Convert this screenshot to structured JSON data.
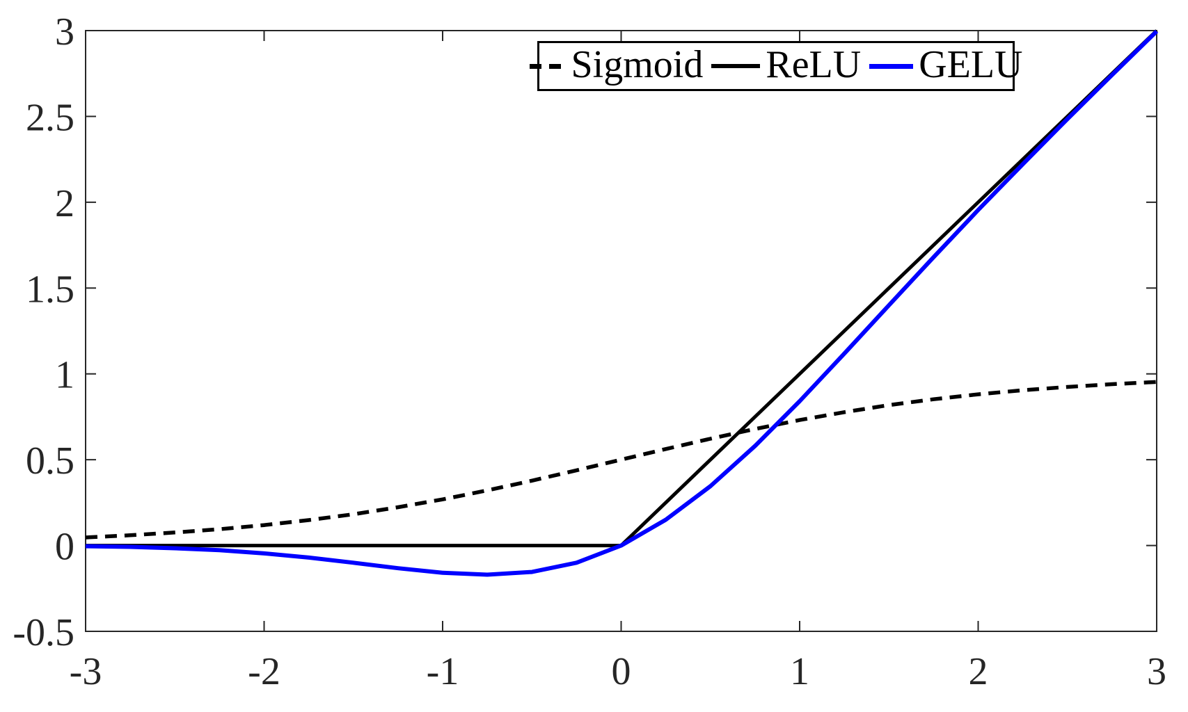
{
  "figure": {
    "background": "#ffffff",
    "axes_color": "#262626",
    "title": ""
  },
  "legend": {
    "position": "top-center-inside",
    "entries": [
      {
        "label": "Sigmoid",
        "line_style": "dashed",
        "color": "#000000"
      },
      {
        "label": "ReLU",
        "line_style": "solid",
        "color": "#000000"
      },
      {
        "label": "GELU",
        "line_style": "solid",
        "color": "#0000ff"
      }
    ]
  },
  "chart_data": {
    "type": "line",
    "title": "",
    "xlabel": "",
    "ylabel": "",
    "xlim": [
      -3,
      3
    ],
    "ylim": [
      -0.5,
      3
    ],
    "xticks": [
      -3,
      -2,
      -1,
      0,
      1,
      2,
      3
    ],
    "yticks": [
      -0.5,
      0,
      0.5,
      1,
      1.5,
      2,
      2.5,
      3
    ],
    "xtick_labels": [
      "-3",
      "-2",
      "-1",
      "0",
      "1",
      "2",
      "3"
    ],
    "ytick_labels": [
      "-0.5",
      "0",
      "0.5",
      "1",
      "1.5",
      "2",
      "2.5",
      "3"
    ],
    "grid": false,
    "box": true,
    "legend_position": "top-center-inside",
    "series": [
      {
        "name": "Sigmoid",
        "color": "#000000",
        "style": "dashed",
        "width": 5.5,
        "x": [
          -3,
          -2.75,
          -2.5,
          -2.25,
          -2,
          -1.75,
          -1.5,
          -1.25,
          -1,
          -0.75,
          -0.5,
          -0.25,
          0,
          0.25,
          0.5,
          0.75,
          1,
          1.25,
          1.5,
          1.75,
          2,
          2.25,
          2.5,
          2.75,
          3
        ],
        "y": [
          0.047,
          0.06,
          0.076,
          0.095,
          0.119,
          0.148,
          0.182,
          0.223,
          0.269,
          0.321,
          0.378,
          0.438,
          0.5,
          0.562,
          0.622,
          0.679,
          0.731,
          0.777,
          0.818,
          0.852,
          0.881,
          0.905,
          0.924,
          0.94,
          0.953
        ]
      },
      {
        "name": "ReLU",
        "color": "#000000",
        "style": "solid",
        "width": 5,
        "x": [
          -3,
          0,
          3
        ],
        "y": [
          0,
          0,
          3
        ]
      },
      {
        "name": "GELU",
        "color": "#0000ff",
        "style": "solid",
        "width": 6,
        "x": [
          -3,
          -2.75,
          -2.5,
          -2.25,
          -2,
          -1.75,
          -1.5,
          -1.25,
          -1,
          -0.75,
          -0.5,
          -0.25,
          0,
          0.25,
          0.5,
          0.75,
          1,
          1.25,
          1.5,
          1.75,
          2,
          2.25,
          2.5,
          2.75,
          3
        ],
        "y": [
          -0.004,
          -0.008,
          -0.016,
          -0.027,
          -0.046,
          -0.07,
          -0.1,
          -0.132,
          -0.159,
          -0.17,
          -0.154,
          -0.1,
          0,
          0.15,
          0.346,
          0.58,
          0.841,
          1.118,
          1.4,
          1.68,
          1.955,
          2.222,
          2.485,
          2.742,
          2.996
        ]
      }
    ]
  }
}
